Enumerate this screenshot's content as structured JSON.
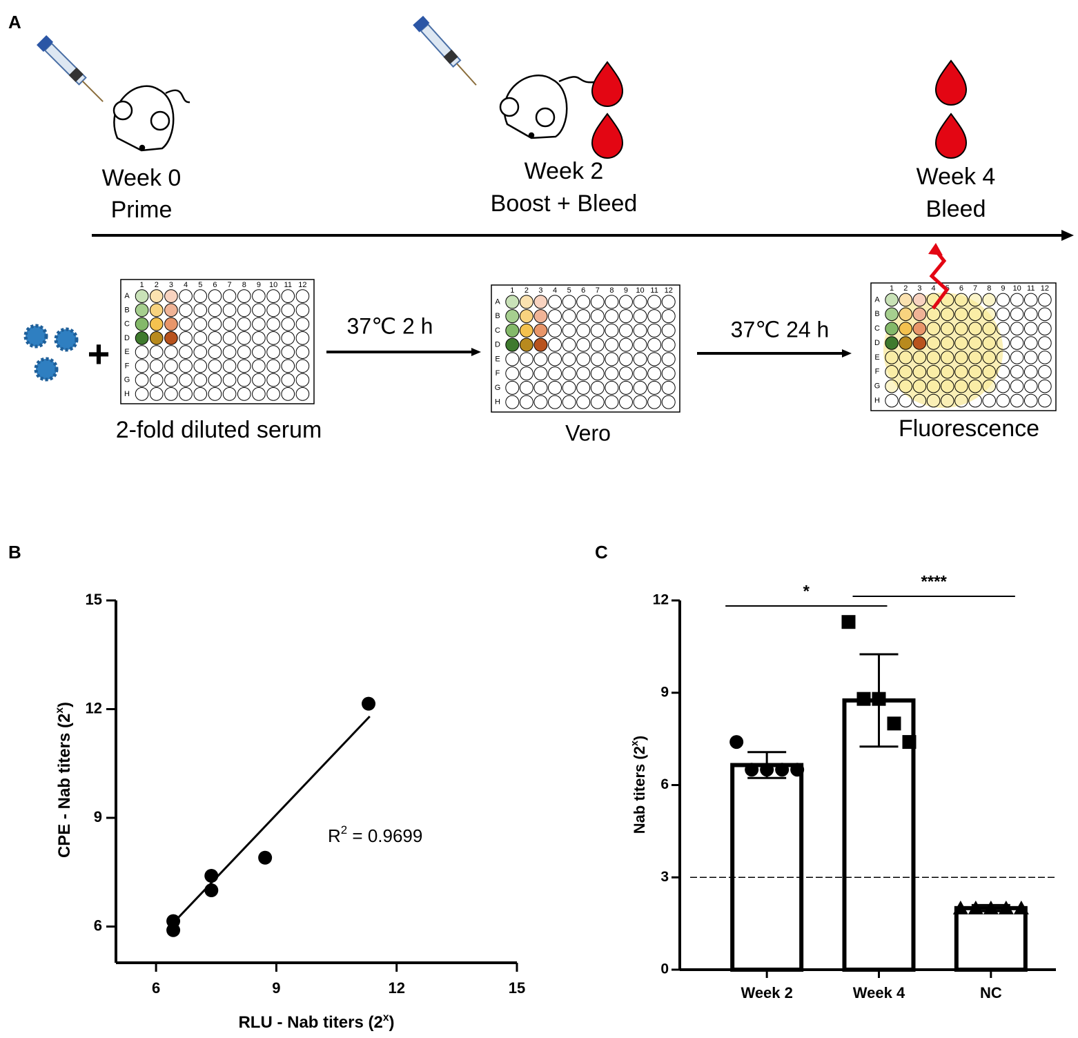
{
  "panel_a": {
    "label": "A",
    "timeline": [
      {
        "week": "Week 0",
        "event": "Prime"
      },
      {
        "week": "Week 2",
        "event": "Boost + Bleed"
      },
      {
        "week": "Week 4",
        "event": "Bleed"
      }
    ],
    "steps": [
      "37℃ 2 h",
      "37℃ 24 h"
    ],
    "plates": [
      "2-fold diluted serum",
      "Vero",
      "Fluorescence"
    ],
    "plate_columns": [
      "1",
      "2",
      "3",
      "4",
      "5",
      "6",
      "7",
      "8",
      "9",
      "10",
      "11",
      "12"
    ],
    "plate_rows": [
      "A",
      "B",
      "C",
      "D",
      "E",
      "F",
      "G",
      "H"
    ]
  },
  "chart_data": [
    {
      "type": "scatter",
      "panel_label": "B",
      "x_label": {
        "text": "RLU - Nab titers (2",
        "sup": "x",
        "after": ")"
      },
      "y_label": {
        "text": "CPE - Nab titers  (2",
        "sup": "x",
        "after": ")"
      },
      "x": [
        6.43,
        6.43,
        7.38,
        7.38,
        8.72,
        11.3
      ],
      "y": [
        6.15,
        5.9,
        7.4,
        7.0,
        7.9,
        12.15
      ],
      "color": "#000000",
      "fit": {
        "x": [
          6.43,
          11.33
        ],
        "y": [
          6.1,
          11.8
        ]
      },
      "annotation": {
        "text": "R",
        "sup": "2",
        "after": " = 0.9699"
      },
      "xlim": [
        5,
        15
      ],
      "ylim": [
        5,
        15
      ],
      "xticks": [
        6,
        9,
        12,
        15
      ],
      "yticks": [
        6,
        9,
        12,
        15
      ]
    },
    {
      "type": "bar",
      "panel_label": "C",
      "y_label": {
        "text": "Nab titers (2",
        "sup": "x",
        "after": ")"
      },
      "categories": [
        "Week 2",
        "Week 4",
        "NC"
      ],
      "values": [
        6.65,
        8.75,
        2.0
      ],
      "errors": [
        0.42,
        1.5,
        0.1
      ],
      "points": [
        [
          7.4,
          6.5,
          6.5,
          6.5,
          6.5
        ],
        [
          11.3,
          8.8,
          8.8,
          8.0,
          7.4
        ],
        [
          2.0,
          2.0,
          2.0,
          2.0,
          2.0
        ]
      ],
      "markers": [
        "circle",
        "square",
        "triangle"
      ],
      "color": "#ffffff",
      "threshold": 3,
      "significance": [
        "*",
        "****"
      ],
      "ylim": [
        0,
        12
      ],
      "yticks": [
        0,
        3,
        6,
        9,
        12
      ]
    }
  ]
}
